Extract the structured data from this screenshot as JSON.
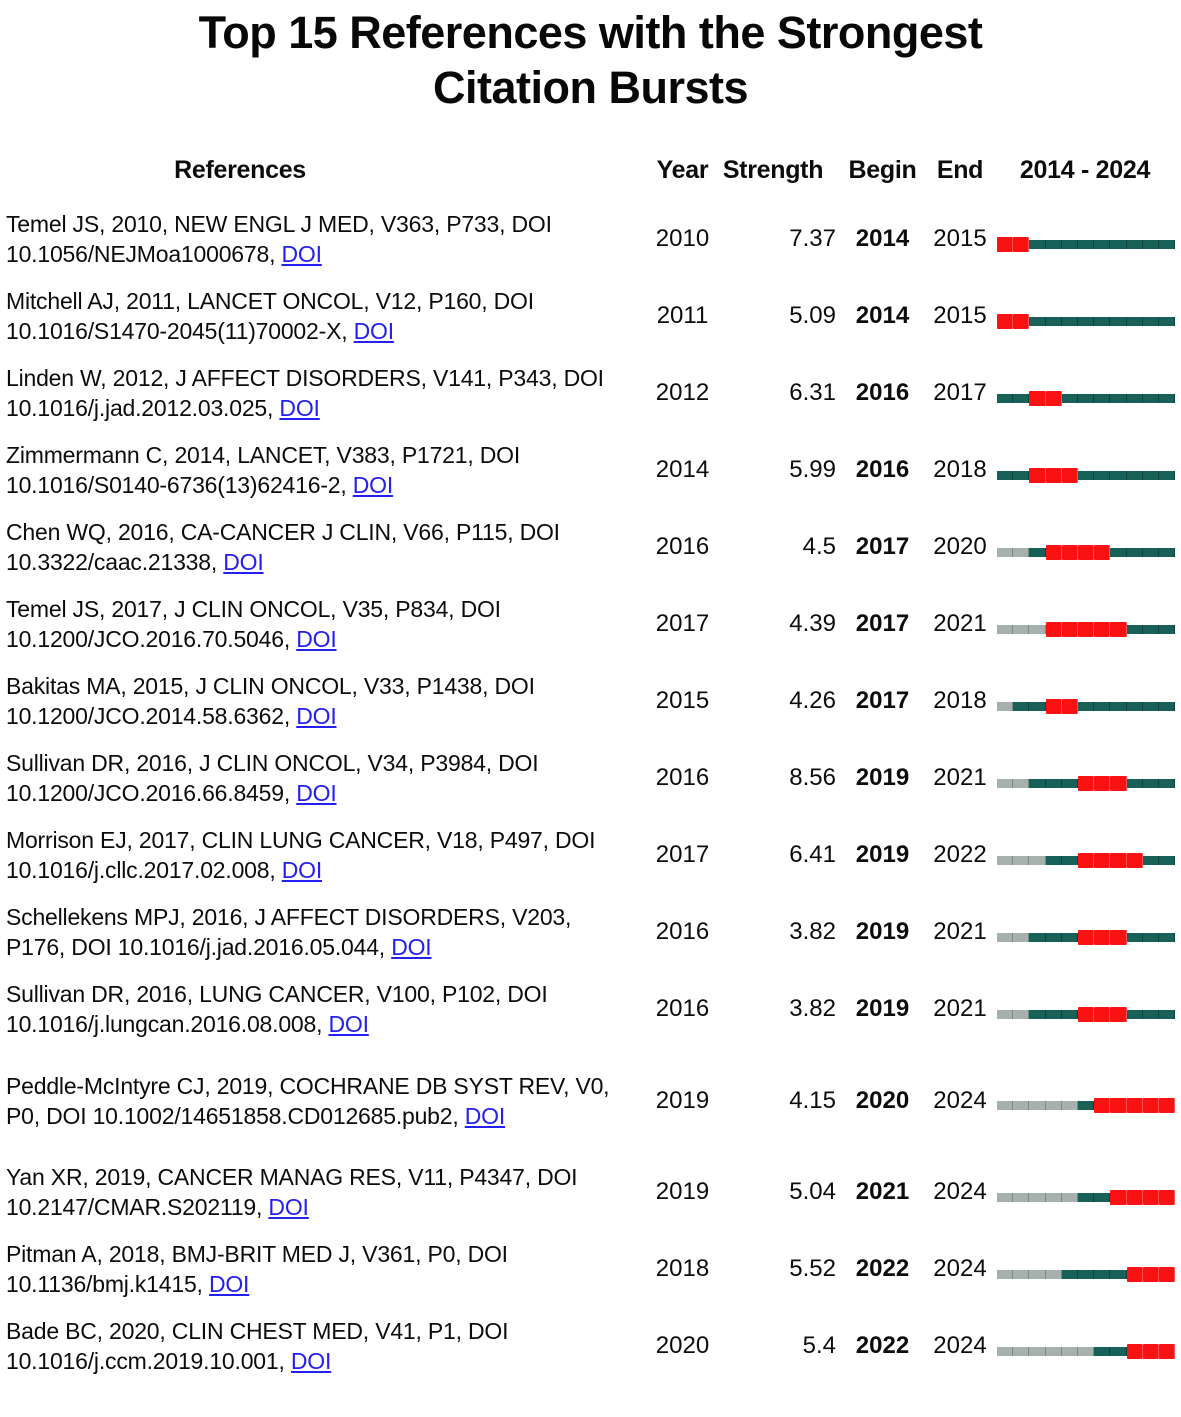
{
  "title": "Top 15 References with the Strongest Citation Bursts",
  "header": {
    "references": "References",
    "year": "Year",
    "strength": "Strength",
    "begin": "Begin",
    "end": "End",
    "period": "2014 - 2024"
  },
  "colors": {
    "burst_red": "#fa1213",
    "active_teal": "#186159",
    "pre_publication_gray": "#a6b0ac",
    "link_blue": "#2320f0",
    "text_black": "#0c0c0c"
  },
  "chart_data": {
    "type": "table",
    "title": "Top 15 References with the Strongest Citation Bursts",
    "columns": [
      "References",
      "Year",
      "Strength",
      "Begin",
      "End",
      "2014 - 2024"
    ],
    "timeline_start": 2014,
    "timeline_end": 2024,
    "legend": {
      "red_segment": "citation burst period (Begin-End)",
      "teal_segment": "years after publication outside burst",
      "gray_segment": "years before publication"
    },
    "rows": [
      {
        "reference": "Temel JS, 2010, NEW ENGL J MED, V363, P733, DOI 10.1056/NEJMoa1000678,",
        "doi_label": "DOI",
        "year": 2010,
        "strength": "7.37",
        "begin": 2014,
        "end": 2015
      },
      {
        "reference": "Mitchell AJ, 2011, LANCET ONCOL, V12, P160, DOI 10.1016/S1470-2045(11)70002-X,",
        "doi_label": "DOI",
        "year": 2011,
        "strength": "5.09",
        "begin": 2014,
        "end": 2015
      },
      {
        "reference": "Linden W, 2012, J AFFECT DISORDERS, V141, P343, DOI 10.1016/j.jad.2012.03.025,",
        "doi_label": "DOI",
        "year": 2012,
        "strength": "6.31",
        "begin": 2016,
        "end": 2017
      },
      {
        "reference": "Zimmermann C, 2014, LANCET, V383, P1721, DOI 10.1016/S0140-6736(13)62416-2,",
        "doi_label": "DOI",
        "year": 2014,
        "strength": "5.99",
        "begin": 2016,
        "end": 2018
      },
      {
        "reference": "Chen WQ, 2016, CA-CANCER J CLIN, V66, P115, DOI 10.3322/caac.21338,",
        "doi_label": "DOI",
        "year": 2016,
        "strength": "4.5",
        "begin": 2017,
        "end": 2020
      },
      {
        "reference": "Temel JS, 2017, J CLIN ONCOL, V35, P834, DOI 10.1200/JCO.2016.70.5046,",
        "doi_label": "DOI",
        "year": 2017,
        "strength": "4.39",
        "begin": 2017,
        "end": 2021
      },
      {
        "reference": "Bakitas MA, 2015, J CLIN ONCOL, V33, P1438, DOI 10.1200/JCO.2014.58.6362,",
        "doi_label": "DOI",
        "year": 2015,
        "strength": "4.26",
        "begin": 2017,
        "end": 2018
      },
      {
        "reference": "Sullivan DR, 2016, J CLIN ONCOL, V34, P3984, DOI 10.1200/JCO.2016.66.8459,",
        "doi_label": "DOI",
        "year": 2016,
        "strength": "8.56",
        "begin": 2019,
        "end": 2021
      },
      {
        "reference": "Morrison EJ, 2017, CLIN LUNG CANCER, V18, P497, DOI 10.1016/j.cllc.2017.02.008,",
        "doi_label": "DOI",
        "year": 2017,
        "strength": "6.41",
        "begin": 2019,
        "end": 2022
      },
      {
        "reference": "Schellekens MPJ, 2016, J AFFECT DISORDERS, V203, P176, DOI 10.1016/j.jad.2016.05.044,",
        "doi_label": "DOI",
        "year": 2016,
        "strength": "3.82",
        "begin": 2019,
        "end": 2021
      },
      {
        "reference": "Sullivan DR, 2016, LUNG CANCER, V100, P102, DOI 10.1016/j.lungcan.2016.08.008,",
        "doi_label": "DOI",
        "year": 2016,
        "strength": "3.82",
        "begin": 2019,
        "end": 2021
      },
      {
        "reference": "Peddle-McIntyre CJ, 2019, COCHRANE DB SYST REV, V0, P0, DOI 10.1002/14651858.CD012685.pub2,",
        "doi_label": "DOI",
        "year": 2019,
        "strength": "4.15",
        "begin": 2020,
        "end": 2024
      },
      {
        "reference": "Yan XR, 2019, CANCER MANAG RES, V11, P4347, DOI 10.2147/CMAR.S202119,",
        "doi_label": "DOI",
        "year": 2019,
        "strength": "5.04",
        "begin": 2021,
        "end": 2024
      },
      {
        "reference": "Pitman A, 2018, BMJ-BRIT MED J, V361, P0, DOI 10.1136/bmj.k1415,",
        "doi_label": "DOI",
        "year": 2018,
        "strength": "5.52",
        "begin": 2022,
        "end": 2024
      },
      {
        "reference": "Bade BC, 2020, CLIN CHEST MED, V41, P1, DOI 10.1016/j.ccm.2019.10.001,",
        "doi_label": "DOI",
        "year": 2020,
        "strength": "5.4",
        "begin": 2022,
        "end": 2024
      }
    ]
  }
}
